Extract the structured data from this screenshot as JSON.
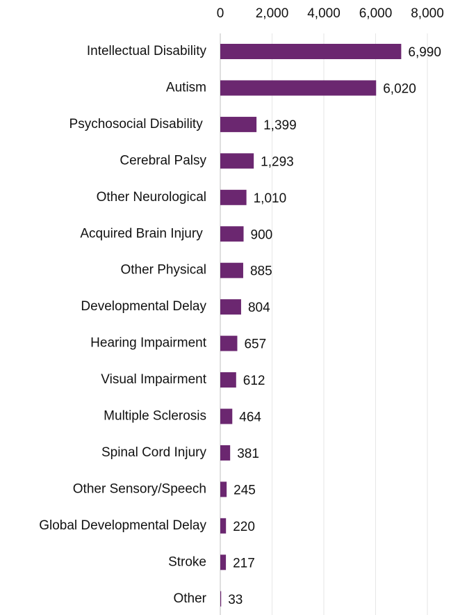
{
  "chart_data": {
    "type": "bar",
    "orientation": "horizontal",
    "categories": [
      "Intellectual Disability",
      "Autism",
      "Psychosocial Disability ",
      "Cerebral Palsy",
      "Other Neurological",
      "Acquired Brain Injury ",
      "Other Physical",
      "Developmental Delay",
      "Hearing Impairment",
      "Visual Impairment",
      "Multiple Sclerosis",
      "Spinal Cord Injury",
      "Other Sensory/Speech",
      "Global Developmental Delay",
      "Stroke",
      "Other"
    ],
    "values": [
      6990,
      6020,
      1399,
      1293,
      1010,
      900,
      885,
      804,
      657,
      612,
      464,
      381,
      245,
      220,
      217,
      33
    ],
    "value_labels": [
      "6,990",
      "6,020",
      "1,399",
      "1,293",
      "1,010",
      "900",
      "885",
      "804",
      "657",
      "612",
      "464",
      "381",
      "245",
      "220",
      "217",
      "33"
    ],
    "color": "#6b2770",
    "xlim": [
      0,
      8000
    ],
    "xticks": [
      0,
      {
        "value": 2000,
        "label": "2,000"
      },
      {
        "value": 4000,
        "label": "4,000"
      },
      {
        "value": 6000,
        "label": "6,000"
      },
      {
        "value": 8000,
        "label": "8,000"
      }
    ],
    "grid": true
  }
}
